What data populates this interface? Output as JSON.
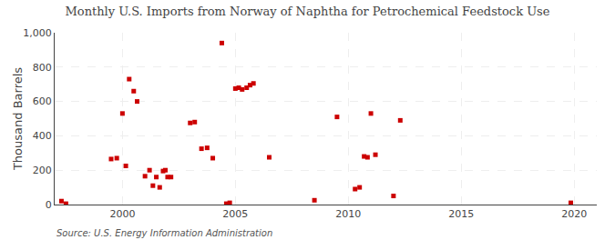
{
  "chart_data": {
    "type": "scatter",
    "title": "Monthly U.S. Imports from Norway of Naphtha for Petrochemical Feedstock Use",
    "ylabel": "Thousand Barrels",
    "annotations": [
      "Source: U.S. Energy Information Administration"
    ],
    "color": "#cc0000",
    "marker": "square",
    "grid": true,
    "xlim": [
      1997,
      2021
    ],
    "ylim": [
      0,
      1000
    ],
    "xticks": [
      2000,
      2005,
      2010,
      2015,
      2020
    ],
    "yticks": [
      0,
      200,
      400,
      600,
      800,
      {
        "value": 1000,
        "label": "1,000"
      }
    ],
    "x": [
      1997.3,
      1997.5,
      1999.5,
      1999.75,
      2000.0,
      2000.15,
      2000.3,
      2000.5,
      2000.65,
      2001.0,
      2001.2,
      2001.35,
      2001.5,
      2001.65,
      2001.8,
      2001.9,
      2002.0,
      2002.15,
      2003.0,
      2003.2,
      2003.5,
      2003.75,
      2004.0,
      2004.4,
      2004.6,
      2004.75,
      2005.0,
      2005.15,
      2005.3,
      2005.5,
      2005.65,
      2005.8,
      2006.5,
      2008.5,
      2009.5,
      2010.3,
      2010.5,
      2010.7,
      2010.85,
      2011.0,
      2011.2,
      2012.0,
      2012.3,
      2019.85
    ],
    "values": [
      20,
      5,
      265,
      270,
      530,
      225,
      730,
      660,
      600,
      165,
      200,
      110,
      160,
      100,
      195,
      200,
      160,
      160,
      475,
      480,
      325,
      330,
      270,
      940,
      5,
      10,
      675,
      680,
      670,
      680,
      695,
      705,
      275,
      25,
      510,
      90,
      100,
      280,
      275,
      530,
      290,
      50,
      490,
      10
    ]
  }
}
